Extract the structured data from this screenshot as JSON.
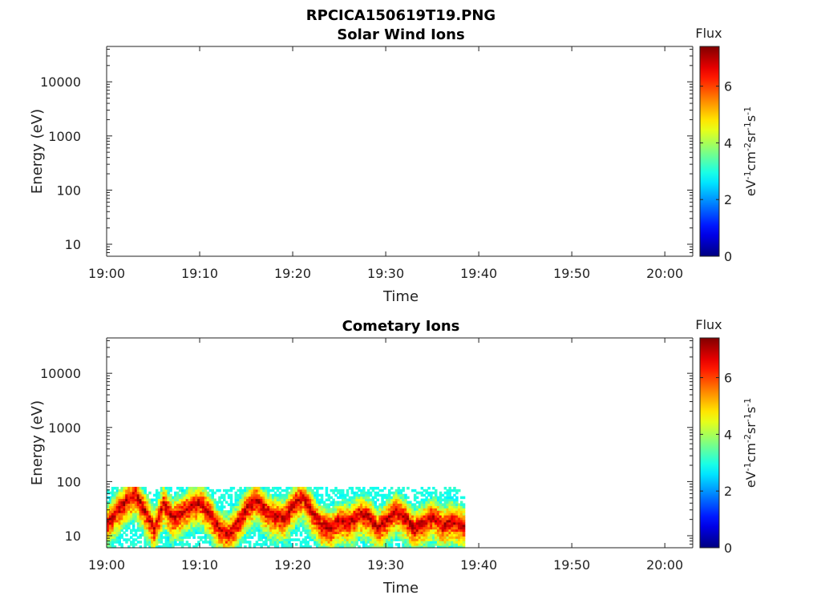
{
  "figure": {
    "title": "RPCICA150619T19.PNG"
  },
  "chart_data": [
    {
      "type": "heatmap",
      "title": "Solar Wind Ions",
      "xlabel": "Time",
      "ylabel": "Energy (eV)",
      "x_ticks": [
        "19:00",
        "19:10",
        "19:20",
        "19:30",
        "19:40",
        "19:50",
        "20:00"
      ],
      "y_scale": "log",
      "y_ticks": [
        10,
        100,
        1000,
        10000
      ],
      "y_tick_labels": [
        "10",
        "100",
        "1000",
        "10000"
      ],
      "xlim": [
        "19:00",
        "20:03"
      ],
      "ylim": [
        6,
        45000
      ],
      "colorbar": {
        "label": "Flux",
        "units": "eV-1cm-2sr-1s-1",
        "range": [
          0,
          7.4
        ],
        "ticks": [
          0,
          2,
          4,
          6
        ],
        "colormap": "jet"
      },
      "data": []
    },
    {
      "type": "heatmap",
      "title": "Cometary Ions",
      "xlabel": "Time",
      "ylabel": "Energy (eV)",
      "x_ticks": [
        "19:00",
        "19:10",
        "19:20",
        "19:30",
        "19:40",
        "19:50",
        "20:00"
      ],
      "y_scale": "log",
      "y_ticks": [
        10,
        100,
        1000,
        10000
      ],
      "y_tick_labels": [
        "10",
        "100",
        "1000",
        "10000"
      ],
      "xlim": [
        "19:00",
        "20:03"
      ],
      "ylim": [
        6,
        45000
      ],
      "colorbar": {
        "label": "Flux",
        "units": "eV-1cm-2sr-1s-1",
        "range": [
          0,
          7.4
        ],
        "ticks": [
          0,
          2,
          4,
          6
        ],
        "colormap": "jet"
      },
      "data_extent": {
        "time": [
          "19:00",
          "19:38.5"
        ],
        "energy_eV": [
          6,
          80
        ]
      },
      "peak_flux_track": [
        {
          "t": 0.0,
          "e": 18
        },
        {
          "t": 1.0,
          "e": 30
        },
        {
          "t": 2.0,
          "e": 45
        },
        {
          "t": 3.0,
          "e": 60
        },
        {
          "t": 4.0,
          "e": 30
        },
        {
          "t": 5.0,
          "e": 14
        },
        {
          "t": 6.0,
          "e": 40
        },
        {
          "t": 7.0,
          "e": 22
        },
        {
          "t": 8.0,
          "e": 28
        },
        {
          "t": 9.0,
          "e": 38
        },
        {
          "t": 10.0,
          "e": 42
        },
        {
          "t": 11.0,
          "e": 26
        },
        {
          "t": 12.0,
          "e": 14
        },
        {
          "t": 13.0,
          "e": 11
        },
        {
          "t": 14.0,
          "e": 18
        },
        {
          "t": 15.0,
          "e": 35
        },
        {
          "t": 16.0,
          "e": 48
        },
        {
          "t": 17.0,
          "e": 30
        },
        {
          "t": 18.0,
          "e": 24
        },
        {
          "t": 19.0,
          "e": 22
        },
        {
          "t": 20.0,
          "e": 40
        },
        {
          "t": 21.0,
          "e": 55
        },
        {
          "t": 22.0,
          "e": 28
        },
        {
          "t": 23.0,
          "e": 16
        },
        {
          "t": 24.0,
          "e": 14
        },
        {
          "t": 25.0,
          "e": 20
        },
        {
          "t": 26.0,
          "e": 18
        },
        {
          "t": 27.0,
          "e": 26
        },
        {
          "t": 28.0,
          "e": 24
        },
        {
          "t": 29.0,
          "e": 14
        },
        {
          "t": 30.0,
          "e": 20
        },
        {
          "t": 31.0,
          "e": 30
        },
        {
          "t": 32.0,
          "e": 22
        },
        {
          "t": 33.0,
          "e": 14
        },
        {
          "t": 34.0,
          "e": 18
        },
        {
          "t": 35.0,
          "e": 24
        },
        {
          "t": 36.0,
          "e": 16
        },
        {
          "t": 37.0,
          "e": 20
        },
        {
          "t": 38.5,
          "e": 15
        }
      ]
    }
  ]
}
